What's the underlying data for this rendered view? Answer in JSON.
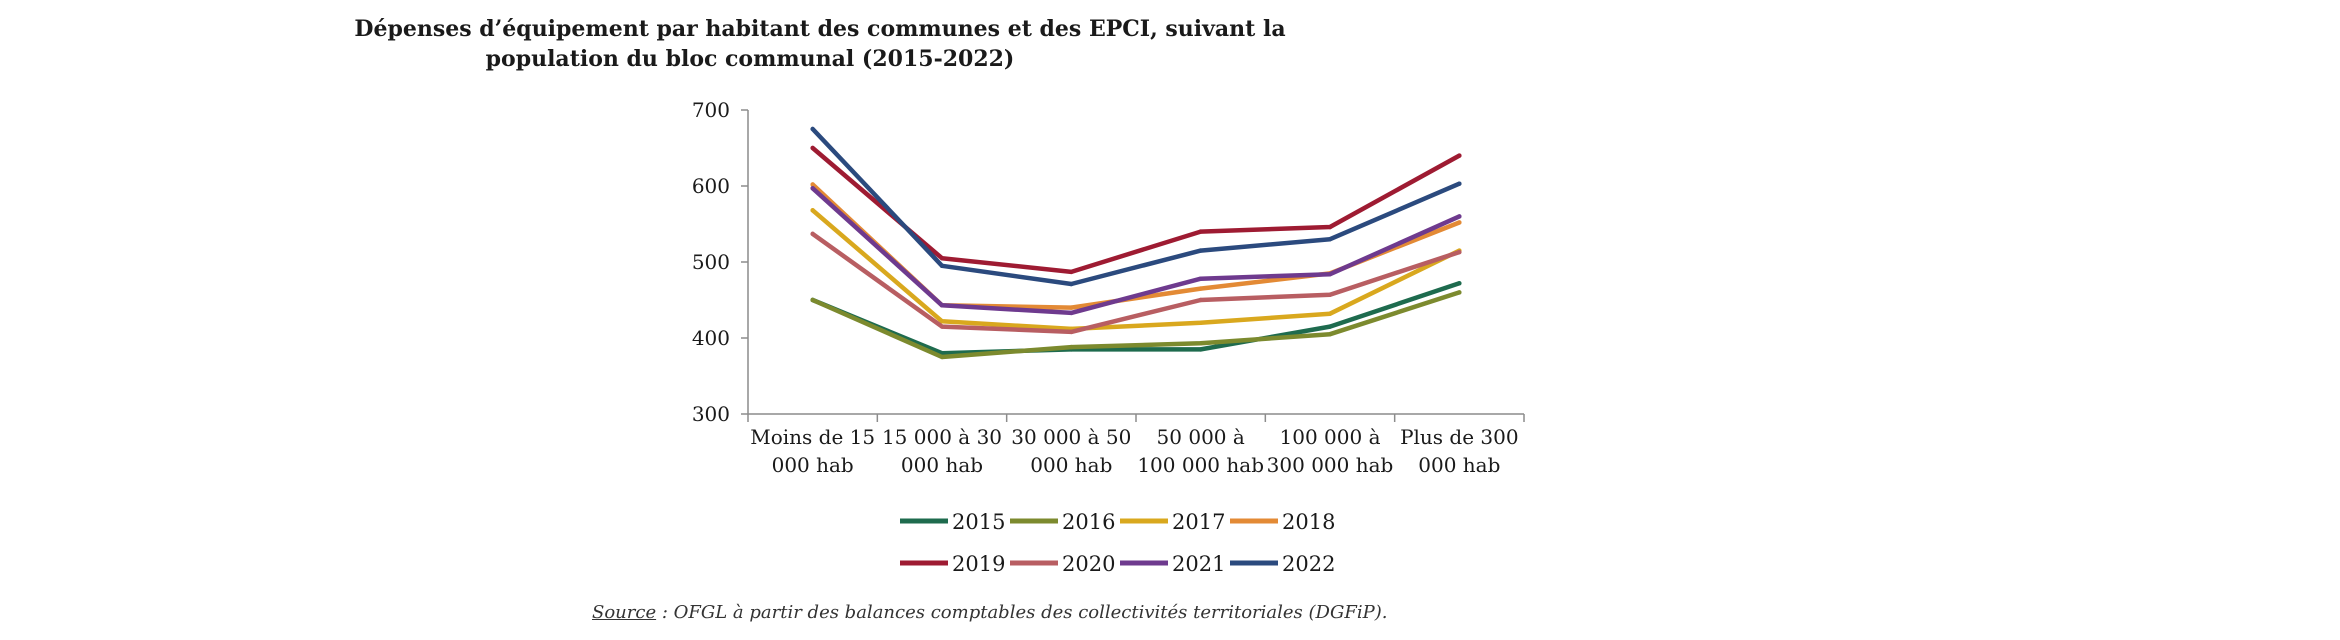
{
  "chart_data": {
    "type": "line",
    "title": "Dépenses d’équipement par habitant des communes et des EPCI, suivant la",
    "title_line2": "population du bloc communal (2015-2022)",
    "categories": [
      [
        "Moins de 15",
        "000 hab"
      ],
      [
        "15 000 à 30",
        "000 hab"
      ],
      [
        "30 000 à 50",
        "000 hab"
      ],
      [
        "50 000 à",
        "100 000 hab"
      ],
      [
        "100 000 à",
        "300 000 hab"
      ],
      [
        "Plus de 300",
        "000 hab"
      ]
    ],
    "ylim": [
      300,
      700
    ],
    "yticks": [
      "300",
      "400",
      "500",
      "600",
      "700"
    ],
    "grid": false,
    "legend_position": "bottom",
    "series": [
      {
        "name": "2015",
        "color": "#1e6b4e",
        "values": [
          450,
          380,
          385,
          385,
          415,
          472
        ]
      },
      {
        "name": "2016",
        "color": "#7c8a2e",
        "values": [
          450,
          375,
          388,
          393,
          405,
          460
        ]
      },
      {
        "name": "2017",
        "color": "#d9a81e",
        "values": [
          568,
          422,
          412,
          420,
          432,
          515
        ]
      },
      {
        "name": "2018",
        "color": "#e38a35",
        "values": [
          602,
          443,
          440,
          465,
          485,
          552
        ]
      },
      {
        "name": "2019",
        "color": "#9e1b32",
        "values": [
          650,
          505,
          487,
          540,
          546,
          640
        ]
      },
      {
        "name": "2020",
        "color": "#b85e62",
        "values": [
          537,
          415,
          408,
          450,
          457,
          513
        ]
      },
      {
        "name": "2021",
        "color": "#6e3a8e",
        "values": [
          597,
          443,
          433,
          478,
          484,
          560
        ]
      },
      {
        "name": "2022",
        "color": "#2b4a7e",
        "values": [
          675,
          495,
          471,
          515,
          530,
          603
        ]
      }
    ]
  },
  "source": {
    "label": "Source",
    "text": " : OFGL à partir des balances comptables des collectivités territoriales (DGFiP)."
  }
}
